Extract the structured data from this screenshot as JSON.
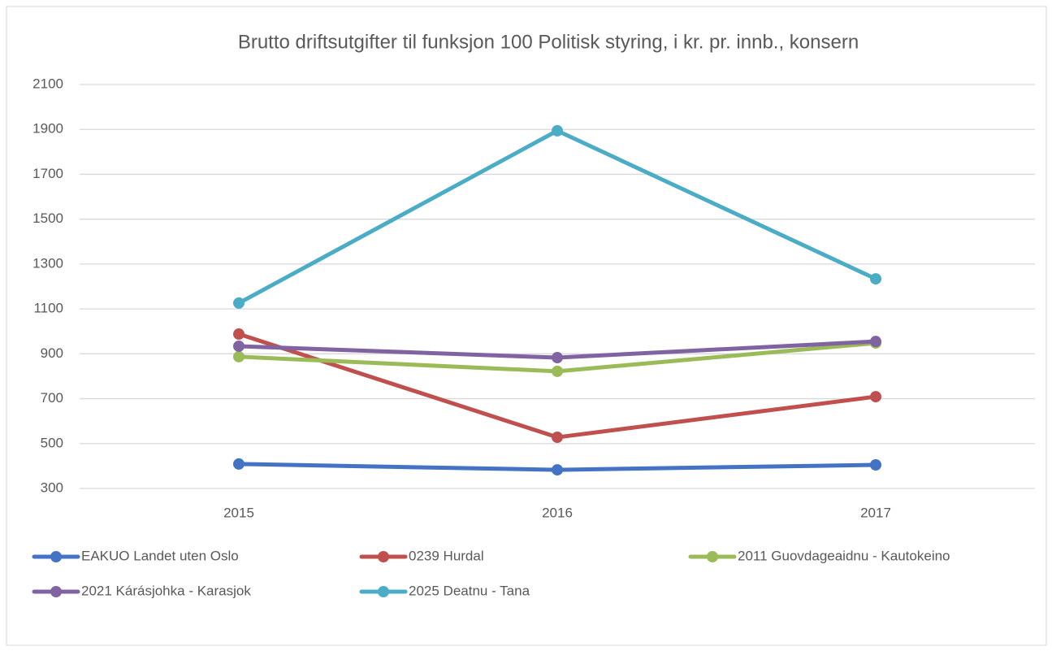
{
  "chart_data": {
    "type": "line",
    "title": "Brutto driftsutgifter til funksjon 100 Politisk styring, i kr. pr. innb., konsern",
    "categories": [
      "2015",
      "2016",
      "2017"
    ],
    "series": [
      {
        "name": "EAKUO Landet uten Oslo",
        "color": "#4472c4",
        "values": [
          409,
          383,
          405
        ]
      },
      {
        "name": "0239 Hurdal",
        "color": "#c0504d",
        "values": [
          988,
          528,
          709
        ]
      },
      {
        "name": "2011 Guovdageaidnu - Kautokeino",
        "color": "#9bbb59",
        "values": [
          887,
          822,
          948
        ]
      },
      {
        "name": "2021 Kárásjohka - Karasjok",
        "color": "#8064a2",
        "values": [
          934,
          883,
          955
        ]
      },
      {
        "name": "2025 Deatnu - Tana",
        "color": "#4bacc6",
        "values": [
          1126,
          1894,
          1234
        ]
      }
    ],
    "ylim": [
      300,
      2100
    ],
    "yticks": [
      300,
      500,
      700,
      900,
      1100,
      1300,
      1500,
      1700,
      1900,
      2100
    ],
    "grid": true,
    "legend": "bottom"
  }
}
